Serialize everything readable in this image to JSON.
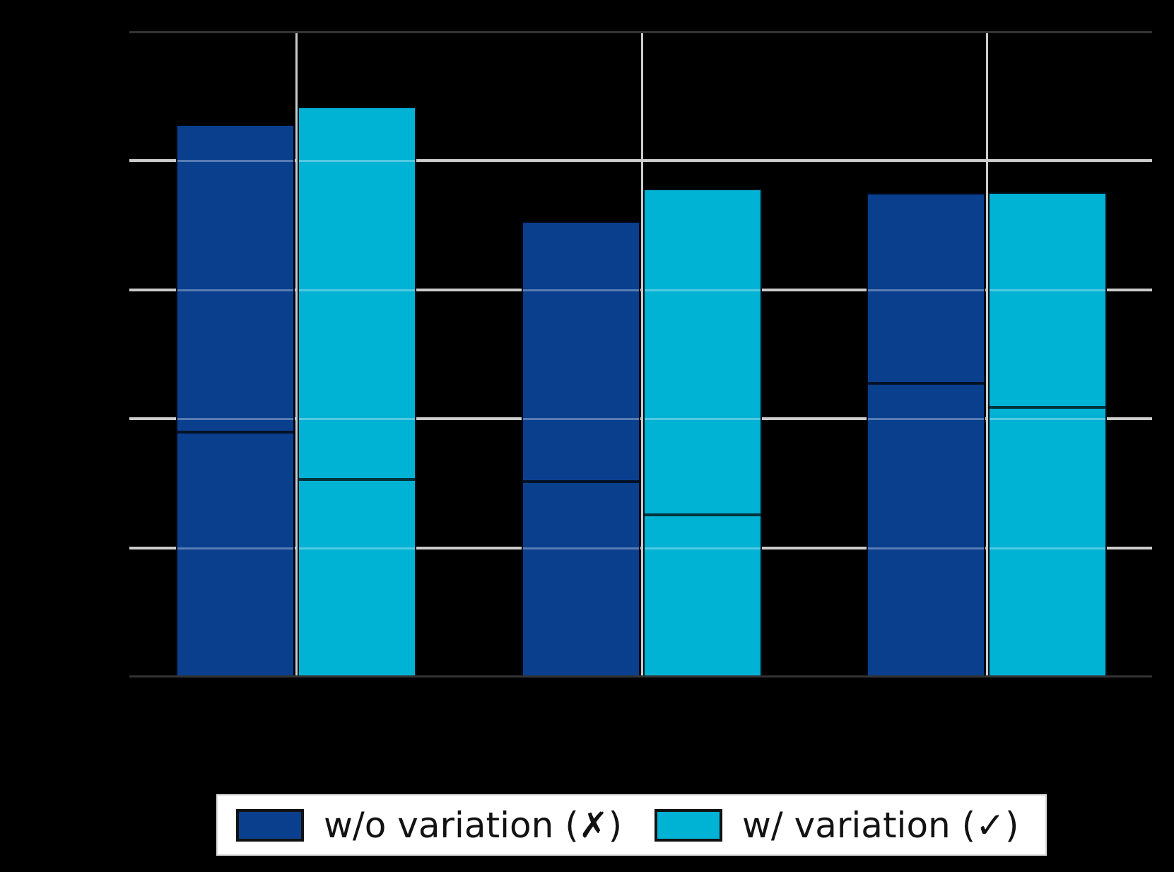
{
  "background_color": "#000000",
  "chart_data": {
    "type": "bar",
    "title": "",
    "xlabel": "",
    "ylabel": "",
    "categories": [
      "",
      "",
      ""
    ],
    "series": [
      {
        "name": "w/o variation (✗)",
        "color": "#0a3f8e",
        "values": [
          0.856,
          0.706,
          0.75
        ],
        "inner_marker_values": [
          0.379,
          0.303,
          0.455
        ]
      },
      {
        "name": "w/ variation (✓)",
        "color": "#00b2d4",
        "values": [
          0.884,
          0.757,
          0.751
        ],
        "inner_marker_values": [
          0.306,
          0.251,
          0.418
        ]
      }
    ],
    "ylim": [
      0,
      1.0
    ],
    "gridline_values": [
      0.2,
      0.4,
      0.6,
      0.8
    ],
    "grid": true,
    "grid_color": "#cbcbcb",
    "spine_color": "#333333",
    "legend_position": "bottom"
  },
  "legend": {
    "items": [
      {
        "label": "w/o variation (✗)"
      },
      {
        "label": "w/ variation (✓)"
      }
    ]
  }
}
